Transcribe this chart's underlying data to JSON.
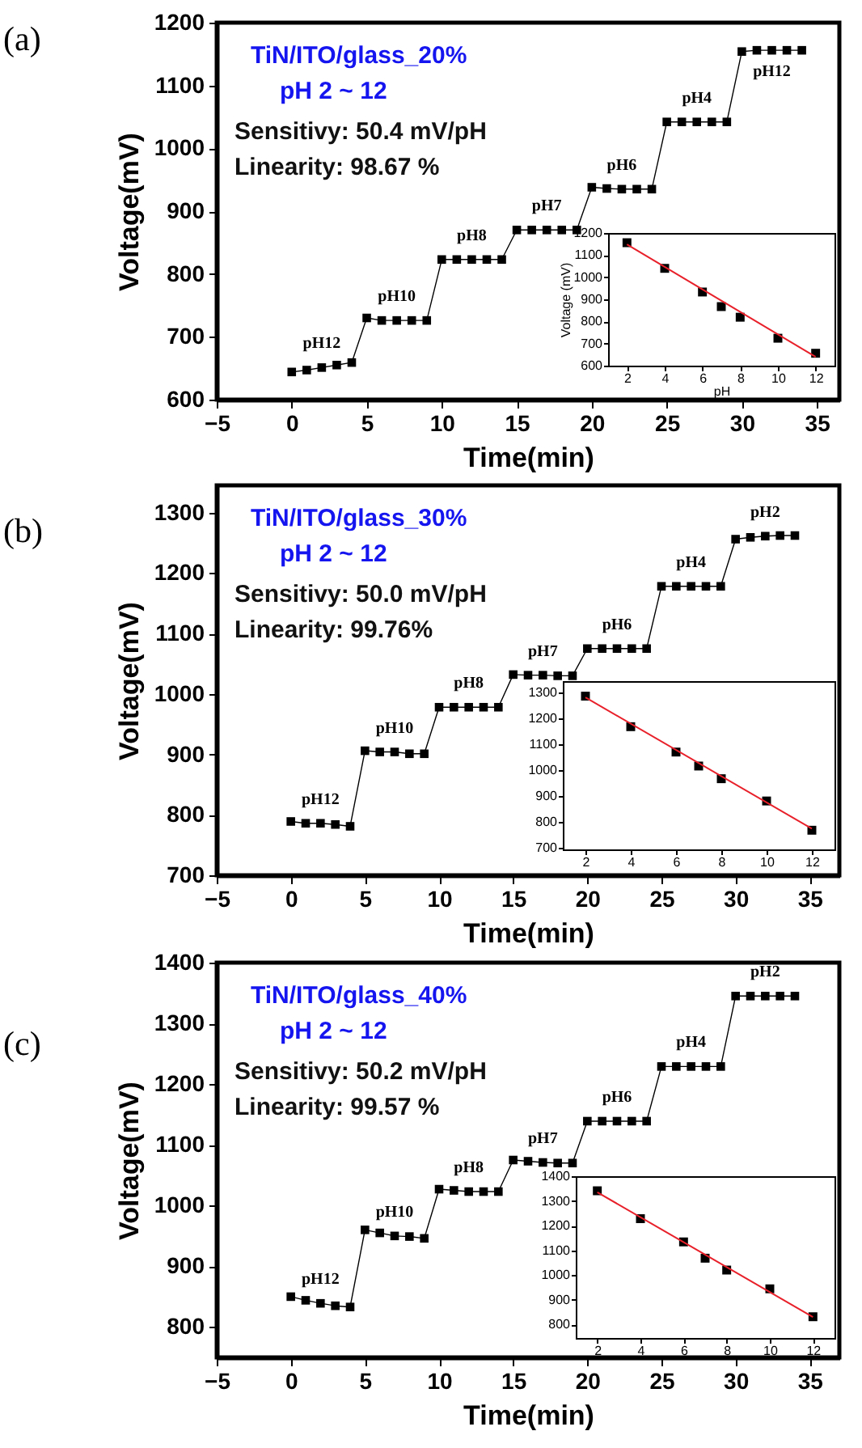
{
  "chart_data": [
    {
      "type": "line",
      "title": "(a)",
      "xlabel": "Time(min)",
      "ylabel": "Voltage(mV)",
      "marker": "square",
      "x": [
        0,
        1,
        2,
        3,
        4,
        5,
        6,
        7,
        8,
        9,
        10,
        11,
        12,
        13,
        14,
        15,
        16,
        17,
        18,
        19,
        20,
        21,
        22,
        23,
        24,
        25,
        26,
        27,
        28,
        29,
        30,
        31,
        32,
        33,
        34
      ],
      "series": [
        {
          "color": "#000000",
          "values": [
            644,
            647,
            651,
            655,
            659,
            730,
            726,
            726,
            726,
            726,
            823,
            823,
            823,
            823,
            823,
            870,
            870,
            870,
            870,
            870,
            938,
            936,
            935,
            935,
            935,
            1042,
            1042,
            1042,
            1042,
            1042,
            1154,
            1156,
            1156,
            1156,
            1156
          ]
        }
      ],
      "xlim": [
        -5,
        36.5
      ],
      "ylim": [
        600,
        1200
      ],
      "xticks": [
        -5,
        0,
        5,
        10,
        15,
        20,
        25,
        30,
        35
      ],
      "yticks": [
        600,
        700,
        800,
        900,
        1000,
        1100,
        1200
      ],
      "annotations": [
        "TiN/ITO/glass_20%",
        "pH 2 ~ 12",
        "Sensitivy: 50.4 mV/pH",
        "Linearity: 98.67 %",
        {
          "text": "pH12",
          "x": 2,
          "y": 651
        },
        {
          "text": "pH10",
          "x": 7,
          "y": 726
        },
        {
          "text": "pH8",
          "x": 12,
          "y": 823
        },
        {
          "text": "pH7",
          "x": 17,
          "y": 870
        },
        {
          "text": "pH6",
          "x": 22,
          "y": 935
        },
        {
          "text": "pH4",
          "x": 27,
          "y": 1042
        },
        {
          "text": "pH12",
          "x": 32,
          "y": 1156
        }
      ]
    },
    {
      "type": "scatter",
      "xlabel": "pH",
      "ylabel": "Voltage (mV)",
      "series": [
        {
          "color": "#000000",
          "x": [
            2,
            4,
            6,
            7,
            8,
            10,
            12
          ],
          "values": [
            1156,
            1040,
            933,
            867,
            819,
            724,
            656
          ]
        },
        {
          "type": "line",
          "color": "#e8202a",
          "x": [
            2,
            12
          ],
          "values": [
            1148,
            640
          ]
        }
      ],
      "xlim": [
        1,
        13
      ],
      "ylim": [
        600,
        1200
      ],
      "xticks": [
        2,
        4,
        6,
        8,
        10,
        12
      ],
      "yticks": [
        600,
        700,
        800,
        900,
        1000,
        1100,
        1200
      ]
    },
    {
      "type": "line",
      "title": "(b)",
      "xlabel": "Time(min)",
      "ylabel": "Voltage(mV)",
      "marker": "square",
      "x": [
        0,
        1,
        2,
        3,
        4,
        5,
        6,
        7,
        8,
        9,
        10,
        11,
        12,
        13,
        14,
        15,
        16,
        17,
        18,
        19,
        20,
        21,
        22,
        23,
        24,
        25,
        26,
        27,
        28,
        29,
        30,
        31,
        32,
        33,
        34
      ],
      "series": [
        {
          "color": "#000000",
          "values": [
            789,
            786,
            786,
            784,
            781,
            906,
            904,
            904,
            901,
            901,
            978,
            978,
            978,
            978,
            978,
            1032,
            1031,
            1031,
            1030,
            1030,
            1075,
            1075,
            1075,
            1075,
            1075,
            1178,
            1178,
            1178,
            1178,
            1178,
            1256,
            1259,
            1261,
            1262,
            1262
          ]
        }
      ],
      "xlim": [
        -5,
        37
      ],
      "ylim": [
        700,
        1345
      ],
      "xticks": [
        -5,
        0,
        5,
        10,
        15,
        20,
        25,
        30,
        35
      ],
      "yticks": [
        700,
        800,
        900,
        1000,
        1100,
        1200,
        1300
      ],
      "annotations": [
        "TiN/ITO/glass_30%",
        "pH 2 ~ 12",
        "Sensitivy: 50.0 mV/pH",
        "Linearity: 99.76%",
        {
          "text": "pH12",
          "x": 2,
          "y": 786
        },
        {
          "text": "pH10",
          "x": 7,
          "y": 904
        },
        {
          "text": "pH8",
          "x": 12,
          "y": 978
        },
        {
          "text": "pH7",
          "x": 17,
          "y": 1031
        },
        {
          "text": "pH6",
          "x": 22,
          "y": 1075
        },
        {
          "text": "pH4",
          "x": 27,
          "y": 1178
        },
        {
          "text": "pH2",
          "x": 32,
          "y": 1261
        }
      ]
    },
    {
      "type": "scatter",
      "series": [
        {
          "color": "#000000",
          "x": [
            2,
            4,
            6,
            7,
            8,
            10,
            12
          ],
          "values": [
            1287,
            1169,
            1071,
            1017,
            968,
            882,
            769
          ]
        },
        {
          "type": "line",
          "color": "#e8202a",
          "x": [
            2,
            12
          ],
          "values": [
            1282,
            775
          ]
        }
      ],
      "xlim": [
        1,
        13
      ],
      "ylim": [
        695,
        1345
      ],
      "xticks": [
        2,
        4,
        6,
        8,
        10,
        12
      ],
      "yticks": [
        700,
        800,
        900,
        1000,
        1100,
        1200,
        1300
      ]
    },
    {
      "type": "line",
      "title": "(c)",
      "xlabel": "Time(min)",
      "ylabel": "Voltage(mV)",
      "marker": "square",
      "x": [
        0,
        1,
        2,
        3,
        4,
        5,
        6,
        7,
        8,
        9,
        10,
        11,
        12,
        13,
        14,
        15,
        16,
        17,
        18,
        19,
        20,
        21,
        22,
        23,
        24,
        25,
        26,
        27,
        28,
        29,
        30,
        31,
        32,
        33,
        34
      ],
      "series": [
        {
          "color": "#000000",
          "values": [
            850,
            844,
            839,
            835,
            833,
            960,
            955,
            950,
            949,
            946,
            1027,
            1025,
            1023,
            1023,
            1023,
            1075,
            1073,
            1071,
            1070,
            1070,
            1139,
            1139,
            1139,
            1139,
            1139,
            1229,
            1229,
            1229,
            1229,
            1229,
            1345,
            1345,
            1345,
            1345,
            1345
          ]
        }
      ],
      "xlim": [
        -5,
        37
      ],
      "ylim": [
        750,
        1400
      ],
      "xticks": [
        -5,
        0,
        5,
        10,
        15,
        20,
        25,
        30,
        35
      ],
      "yticks": [
        800,
        900,
        1000,
        1100,
        1200,
        1300,
        1400
      ],
      "annotations": [
        "TiN/ITO/glass_40%",
        "pH 2 ~ 12",
        "Sensitivy: 50.2 mV/pH",
        "Linearity: 99.57 %",
        {
          "text": "pH12",
          "x": 2,
          "y": 839
        },
        {
          "text": "pH10",
          "x": 7,
          "y": 950
        },
        {
          "text": "pH8",
          "x": 12,
          "y": 1023
        },
        {
          "text": "pH7",
          "x": 17,
          "y": 1071
        },
        {
          "text": "pH6",
          "x": 22,
          "y": 1139
        },
        {
          "text": "pH4",
          "x": 27,
          "y": 1229
        },
        {
          "text": "pH2",
          "x": 32,
          "y": 1345
        }
      ]
    },
    {
      "type": "scatter",
      "series": [
        {
          "color": "#000000",
          "x": [
            2,
            4,
            6,
            7,
            8,
            10,
            12
          ],
          "values": [
            1341,
            1228,
            1134,
            1068,
            1020,
            944,
            831
          ]
        },
        {
          "type": "line",
          "color": "#e8202a",
          "x": [
            2,
            12
          ],
          "values": [
            1335,
            830
          ]
        }
      ],
      "xlim": [
        1,
        13
      ],
      "ylim": [
        745,
        1400
      ],
      "xticks": [
        2,
        4,
        6,
        8,
        10,
        12
      ],
      "yticks": [
        800,
        900,
        1000,
        1100,
        1200,
        1300,
        1400
      ]
    }
  ]
}
